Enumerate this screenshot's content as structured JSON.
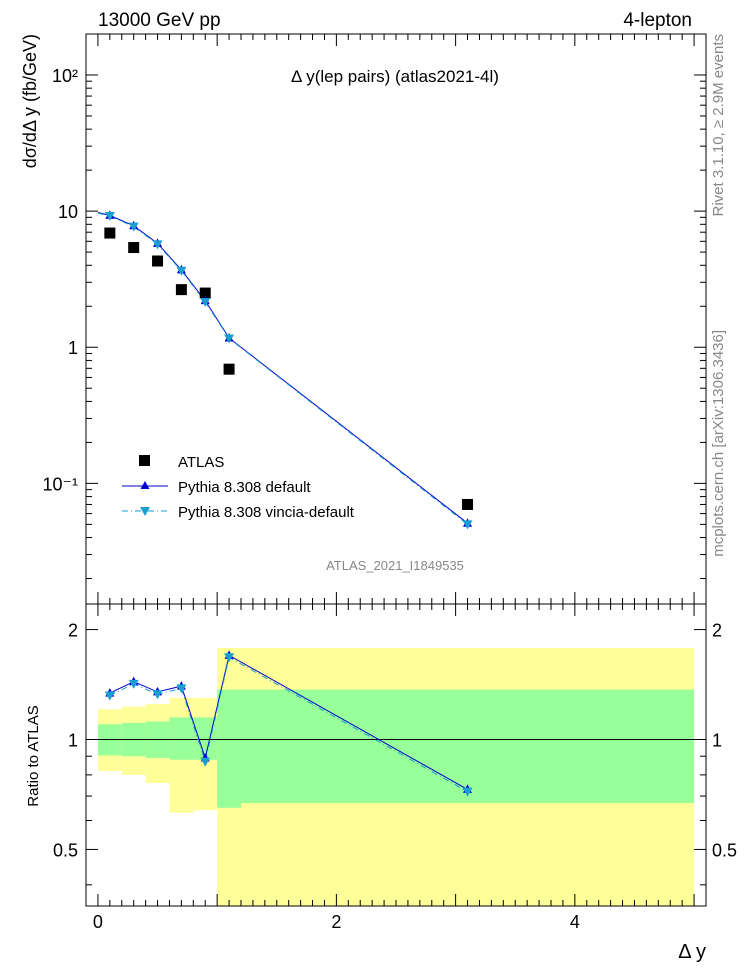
{
  "header": {
    "left": "13000 GeV pp",
    "right": "4-lepton"
  },
  "side_texts": {
    "rivet": "Rivet 3.1.10, ≥ 2.9M events",
    "mcplots": "mcplots.cern.ch [arXiv:1306.3436]"
  },
  "chart_data": [
    {
      "type": "scatter",
      "title": "Δ y(lep pairs) (atlas2021-4l)",
      "watermark": "ATLAS_2021_I1849535",
      "ylabel": "dσ/dΔ y (fb/GeV)",
      "yscale": "log",
      "xlim": [
        -0.1,
        5.1
      ],
      "ylim": [
        0.013,
        200
      ],
      "y_tick_labels": [
        "10⁻¹",
        "1",
        "10",
        "10²"
      ],
      "legend_position": "bottom-left",
      "series": [
        {
          "name": "ATLAS",
          "color": "#000000",
          "marker": "square",
          "x": [
            0.1,
            0.3,
            0.5,
            0.7,
            0.9,
            1.1,
            3.1
          ],
          "y": [
            6.9,
            5.4,
            4.3,
            2.65,
            2.5,
            0.69,
            0.07
          ]
        },
        {
          "name": "Pythia 8.308 default",
          "color": "#0000cc",
          "marker": "triangle-up",
          "line": "solid",
          "x": [
            0.1,
            0.3,
            0.5,
            0.7,
            0.9,
            1.1,
            3.1
          ],
          "y": [
            9.3,
            7.8,
            5.8,
            3.7,
            2.2,
            1.17,
            0.051
          ]
        },
        {
          "name": "Pythia 8.308 vincia-default",
          "color": "#1a9fd0",
          "marker": "triangle-down",
          "line": "dashdot",
          "x": [
            0.1,
            0.3,
            0.5,
            0.7,
            0.9,
            1.1,
            3.1
          ],
          "y": [
            9.2,
            7.7,
            5.7,
            3.65,
            2.15,
            1.16,
            0.05
          ]
        }
      ]
    },
    {
      "type": "line",
      "ylabel": "Ratio to ATLAS",
      "xlabel": "Δ y",
      "xlim": [
        -0.1,
        5.1
      ],
      "ylim": [
        0.35,
        2.35
      ],
      "x_tick_labels": [
        "0",
        "2",
        "4"
      ],
      "y_tick_labels": [
        "0.5",
        "1",
        "2"
      ],
      "reference_line": 1,
      "bins": [
        0,
        0.2,
        0.4,
        0.6,
        0.8,
        1.0,
        1.2,
        5.0
      ],
      "bands": [
        {
          "name": "stat",
          "color": "#99ff99",
          "low": [
            0.905,
            0.9,
            0.89,
            0.88,
            0.88,
            0.65,
            0.67
          ],
          "high": [
            1.1,
            1.11,
            1.12,
            1.15,
            1.15,
            1.37,
            1.37
          ]
        },
        {
          "name": "total",
          "color": "#ffff99",
          "low": [
            0.82,
            0.8,
            0.76,
            0.63,
            0.64,
            0.35,
            0.35
          ],
          "high": [
            1.21,
            1.23,
            1.25,
            1.3,
            1.3,
            1.78,
            1.78
          ]
        }
      ],
      "series": [
        {
          "name": "Pythia 8.308 default",
          "color": "#0000cc",
          "marker": "triangle-up",
          "line": "solid",
          "x": [
            0.1,
            0.3,
            0.5,
            0.7,
            0.9,
            1.1,
            3.1
          ],
          "y": [
            1.34,
            1.44,
            1.35,
            1.4,
            0.89,
            1.7,
            0.73
          ]
        },
        {
          "name": "Pythia 8.308 vincia-default",
          "color": "#1a9fd0",
          "marker": "triangle-down",
          "line": "dashdot",
          "x": [
            0.1,
            0.3,
            0.5,
            0.7,
            0.9,
            1.1,
            3.1
          ],
          "y": [
            1.32,
            1.42,
            1.33,
            1.38,
            0.87,
            1.68,
            0.72
          ]
        }
      ]
    }
  ]
}
